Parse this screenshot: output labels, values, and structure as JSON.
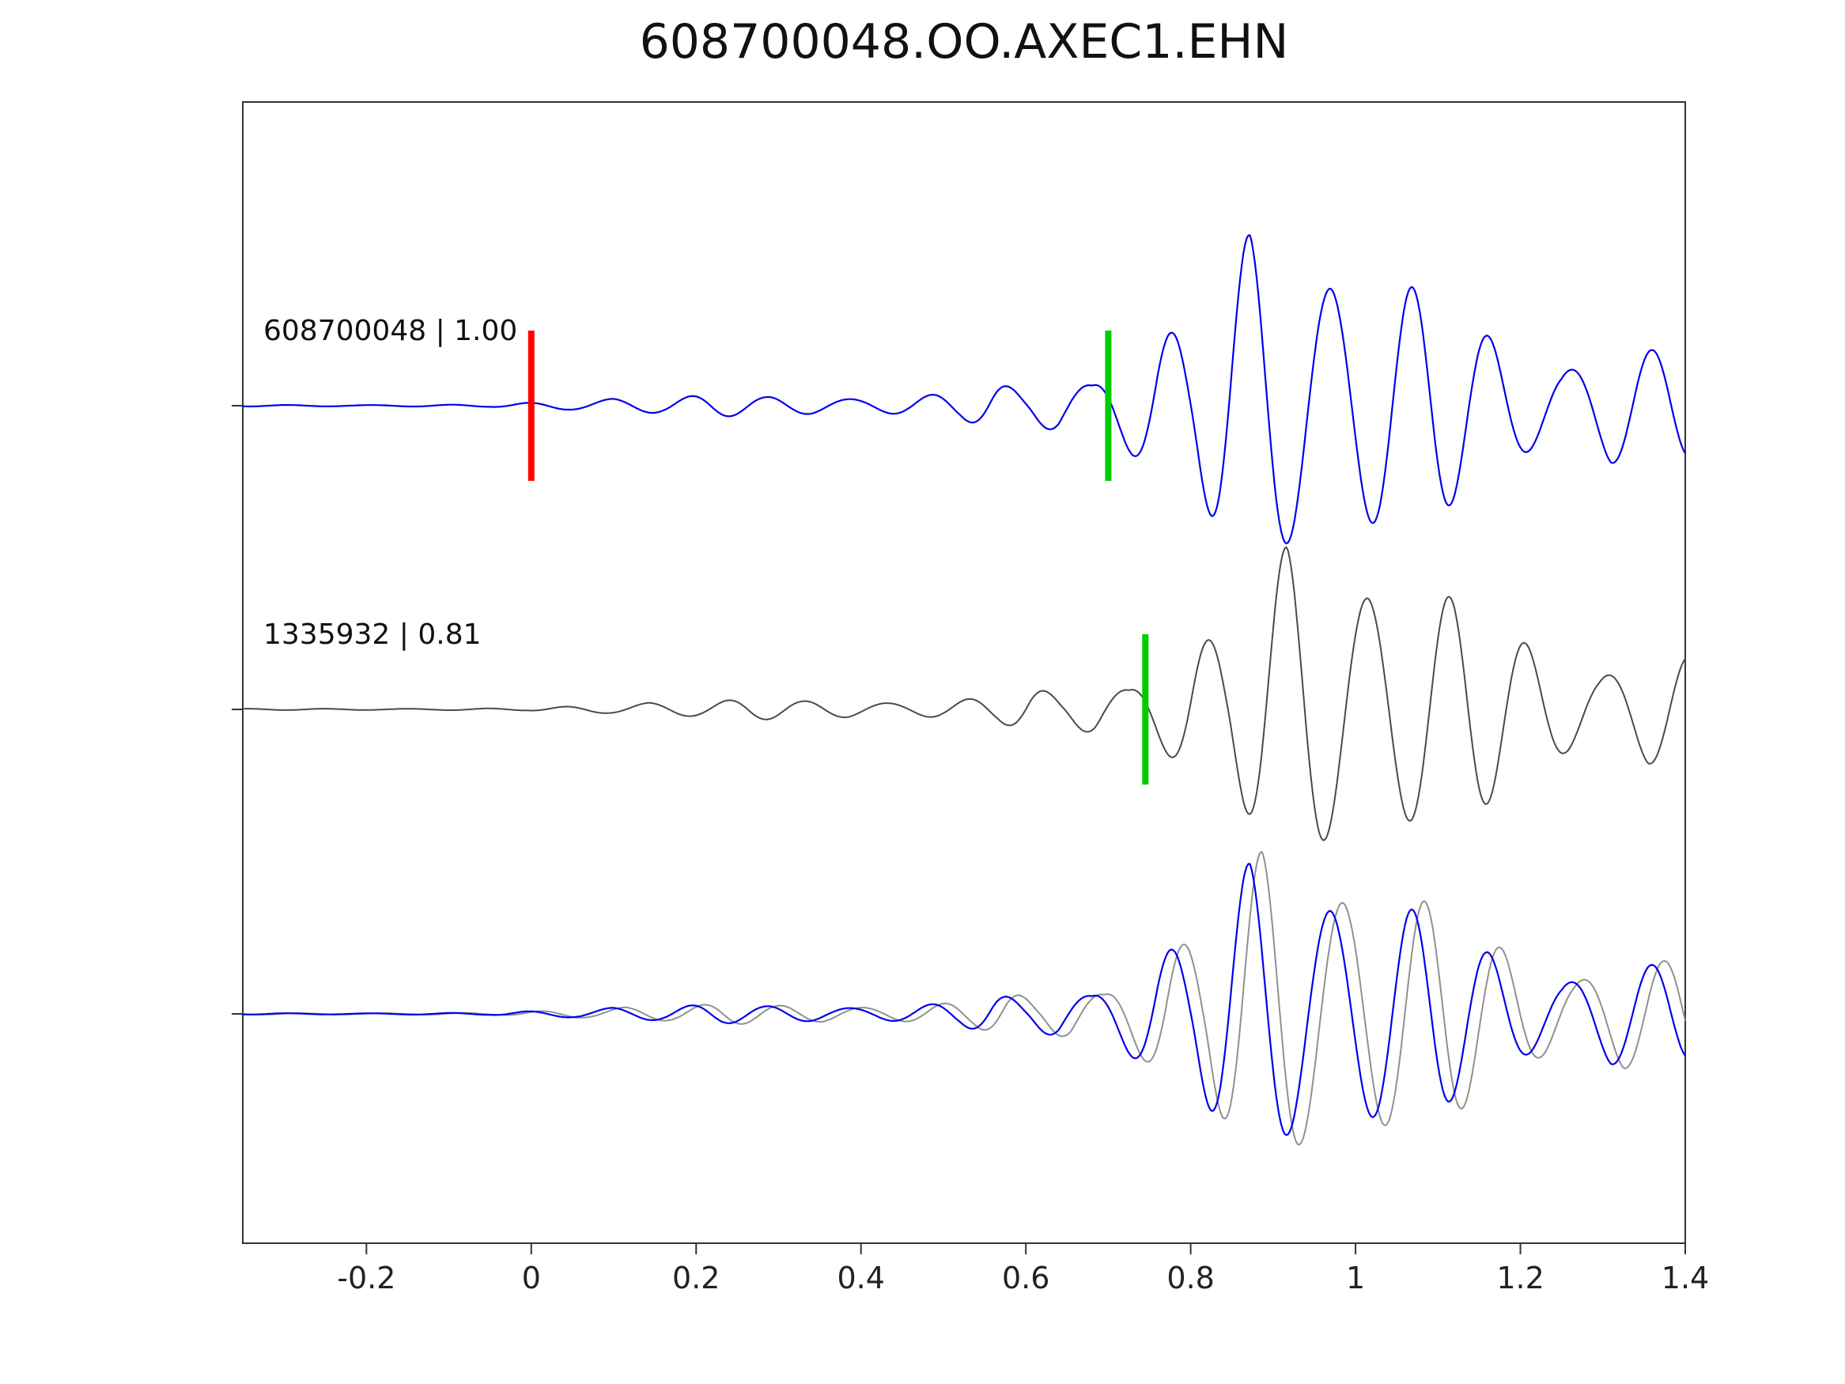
{
  "title": "608700048.OO.AXEC1.EHN",
  "chart_data": {
    "type": "line",
    "title": "608700048.OO.AXEC1.EHN",
    "xlabel": "",
    "ylabel": "",
    "xlim": [
      -0.35,
      1.4
    ],
    "x_ticks": [
      -0.2,
      0,
      0.2,
      0.4,
      0.6,
      0.8,
      1,
      1.2,
      1.4
    ],
    "x_tick_labels": [
      "-0.2",
      "0",
      "0.2",
      "0.4",
      "0.6",
      "0.8",
      "1",
      "1.2",
      "1.4"
    ],
    "grid": false,
    "legend": "none",
    "spine_color": "#333333",
    "rows": [
      {
        "row": 0,
        "label": "608700048 | 1.00",
        "markers": [
          {
            "x": 0.0,
            "color": "#ff0000",
            "name": "reference-pick-marker"
          },
          {
            "x": 0.7,
            "color": "#00cc00",
            "name": "phase-pick-marker"
          }
        ],
        "lines": [
          {
            "color": "#0000ee",
            "shift": 0.0,
            "scale": 1.0,
            "width": 2.2,
            "name": "trace-608700048"
          }
        ]
      },
      {
        "row": 1,
        "label": "1335932 | 0.81",
        "markers": [
          {
            "x": 0.745,
            "color": "#00cc00",
            "name": "phase-pick-marker"
          }
        ],
        "lines": [
          {
            "color": "#4a4a4a",
            "shift": 0.045,
            "scale": 0.95,
            "width": 2.0,
            "name": "trace-1335932"
          }
        ]
      },
      {
        "row": 2,
        "label": "",
        "markers": [],
        "lines": [
          {
            "color": "#909090",
            "shift": 0.015,
            "scale": 0.95,
            "width": 2.0,
            "name": "overlay-trace-1335932"
          },
          {
            "color": "#0000ee",
            "shift": 0.0,
            "scale": 0.88,
            "width": 2.2,
            "name": "overlay-trace-608700048"
          }
        ]
      }
    ],
    "correlation": {
      "reference_id": "608700048",
      "reference_value": "1.00",
      "match_id": "1335932",
      "match_value": "0.81"
    },
    "waveform_model": {
      "carrier_freq_hz": 10.3,
      "carrier2_freq_hz": 13.7,
      "mix": [
        0.92,
        0.18
      ],
      "carrier2_phase": 1.1,
      "peak_time": 0.872,
      "envelope": [
        [
          -0.35,
          0.004
        ],
        [
          -0.05,
          0.006
        ],
        [
          0.05,
          0.03
        ],
        [
          0.1,
          0.055
        ],
        [
          0.16,
          0.045
        ],
        [
          0.22,
          0.06
        ],
        [
          0.28,
          0.05
        ],
        [
          0.34,
          0.06
        ],
        [
          0.4,
          0.05
        ],
        [
          0.46,
          0.055
        ],
        [
          0.52,
          0.07
        ],
        [
          0.56,
          0.13
        ],
        [
          0.6,
          0.09
        ],
        [
          0.64,
          0.2
        ],
        [
          0.68,
          0.16
        ],
        [
          0.72,
          0.3
        ],
        [
          0.76,
          0.44
        ],
        [
          0.8,
          0.38
        ],
        [
          0.84,
          0.72
        ],
        [
          0.872,
          1.0
        ],
        [
          0.92,
          0.95
        ],
        [
          0.97,
          0.93
        ],
        [
          1.03,
          0.78
        ],
        [
          1.09,
          0.62
        ],
        [
          1.14,
          0.44
        ],
        [
          1.19,
          0.34
        ],
        [
          1.25,
          0.26
        ],
        [
          1.31,
          0.4
        ],
        [
          1.36,
          0.32
        ],
        [
          1.4,
          0.28
        ]
      ]
    }
  }
}
